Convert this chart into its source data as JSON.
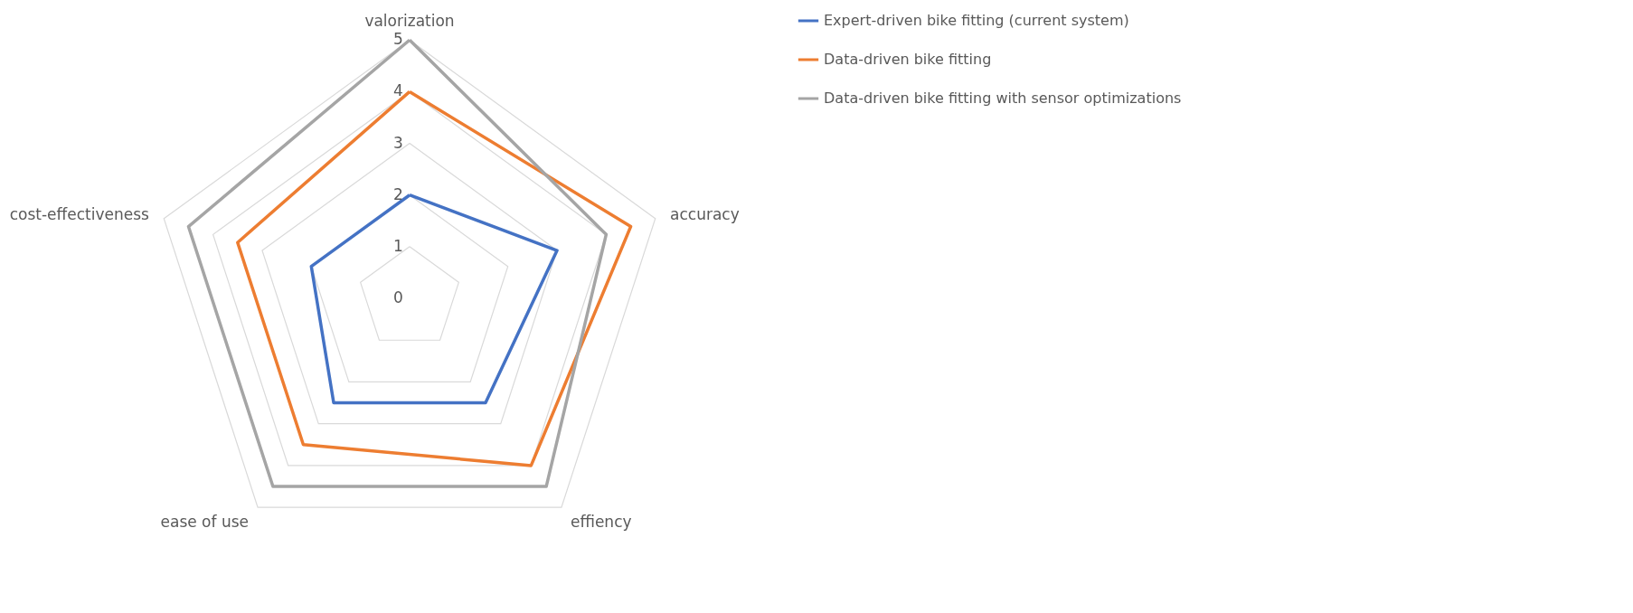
{
  "chart_data": {
    "type": "radar",
    "categories": [
      "valorization",
      "accuracy",
      "effiency",
      "ease of use",
      "cost-effectiveness"
    ],
    "ylim": [
      0,
      5
    ],
    "yticks": [
      0,
      1,
      2,
      3,
      4,
      5
    ],
    "grid": true,
    "legend": "right",
    "marker": "none",
    "series": [
      {
        "name": "Expert-driven bike fitting (current system)",
        "color": "#4472c4",
        "values": [
          2,
          3,
          2.5,
          2.5,
          2
        ]
      },
      {
        "name": "Data-driven bike fitting",
        "color": "#ed7d31",
        "values": [
          4,
          4.5,
          4,
          3.5,
          3.5
        ]
      },
      {
        "name": "Data-driven bike fitting with sensor optimizations",
        "color": "#a5a5a5",
        "values": [
          5,
          4,
          4.5,
          4.5,
          4.5
        ]
      }
    ]
  }
}
